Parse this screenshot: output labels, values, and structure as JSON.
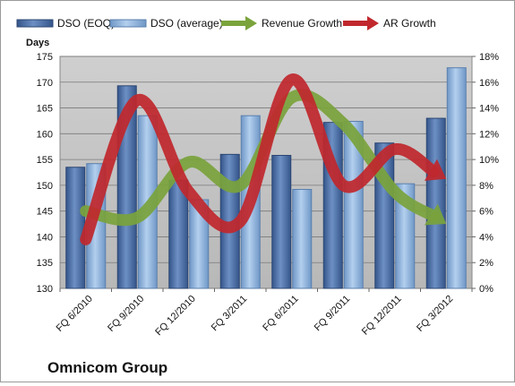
{
  "chart_data": {
    "type": "bar",
    "title": "Omnicom Group",
    "ylabel": "Days",
    "categories": [
      "FQ 6/2010",
      "FQ 9/2010",
      "FQ 12/2010",
      "FQ 3/2011",
      "FQ 6/2011",
      "FQ 9/2011",
      "FQ 12/2011",
      "FQ 3/2012"
    ],
    "ylim": [
      130,
      175
    ],
    "yticks": [
      130,
      135,
      140,
      145,
      150,
      155,
      160,
      165,
      170,
      175
    ],
    "y2lim": [
      0,
      18
    ],
    "y2ticks": [
      "0%",
      "2%",
      "4%",
      "6%",
      "8%",
      "10%",
      "12%",
      "14%",
      "16%",
      "18%"
    ],
    "legend_position": "top",
    "grid": true,
    "series": [
      {
        "name": "DSO (EOQ)",
        "type": "bar",
        "axis": "left",
        "color": "#4a6fa5",
        "values": [
          153.5,
          169.3,
          151,
          156,
          155.8,
          162.2,
          158.2,
          163
        ]
      },
      {
        "name": "DSO (average)",
        "type": "bar",
        "axis": "left",
        "color": "#8fb4dc",
        "values": [
          154.2,
          163.5,
          147.2,
          163.5,
          149.2,
          162.4,
          150.3,
          172.8
        ]
      },
      {
        "name": "Revenue Growth",
        "type": "line",
        "axis": "right",
        "color": "#7aa33c",
        "values": [
          6,
          5.5,
          9.8,
          8,
          14.8,
          12.8,
          7.5,
          5
        ]
      },
      {
        "name": "AR Growth",
        "type": "line",
        "axis": "right",
        "color": "#c0282d",
        "values": [
          3.8,
          14.6,
          7.5,
          5.2,
          16.2,
          8,
          10.8,
          8.5
        ]
      }
    ]
  }
}
